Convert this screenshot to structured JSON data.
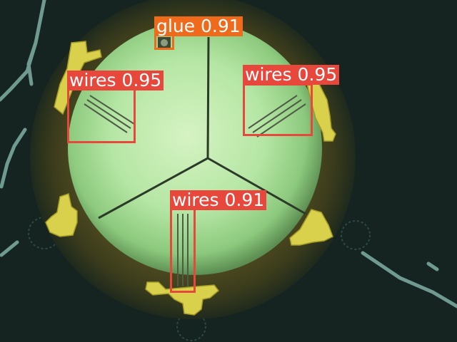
{
  "image": {
    "subject": "microscope view of a circular sensor chip with wire bonds",
    "colors": {
      "background": "#152420",
      "wires_box": "#e8473c",
      "glue_box": "#f06a1c"
    }
  },
  "detections": [
    {
      "label": "glue 0.91",
      "class": "glue",
      "score": 0.91,
      "color": "#f06a1c"
    },
    {
      "label": "wires 0.95",
      "class": "wires",
      "score": 0.95,
      "color": "#e8473c"
    },
    {
      "label": "wires 0.95",
      "class": "wires",
      "score": 0.95,
      "color": "#e8473c"
    },
    {
      "label": "wires 0.91",
      "class": "wires",
      "score": 0.91,
      "color": "#e8473c"
    }
  ]
}
